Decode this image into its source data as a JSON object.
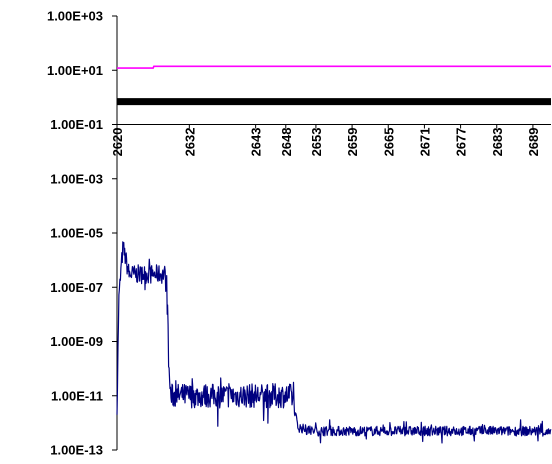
{
  "chart_data": {
    "type": "line",
    "title": "",
    "xlabel": "",
    "ylabel": "",
    "y_scale": "log",
    "ylim": [
      1e-13,
      1000
    ],
    "xlim": [
      2620,
      2692
    ],
    "grid": false,
    "legend": "none",
    "y_tick_values": [
      1000,
      10,
      0.1,
      0.001,
      1e-05,
      1e-07,
      1e-09,
      1e-11,
      1e-13
    ],
    "y_tick_labels": [
      "1.00E+03",
      "1.00E+01",
      "1.00E-01",
      "1.00E-03",
      "1.00E-05",
      "1.00E-07",
      "1.00E-09",
      "1.00E-11",
      "1.00E-13"
    ],
    "x_tick_values": [
      2620,
      2632,
      2643,
      2648,
      2653,
      2659,
      2665,
      2671,
      2677,
      2683,
      2689
    ],
    "x_tick_labels": [
      "2620",
      "2632",
      "2643",
      "2648",
      "2653",
      "2659",
      "2665",
      "2671",
      "2677",
      "2683",
      "2689"
    ],
    "x_axis_crosses_at": 0.1,
    "series": [
      {
        "color": "#ff00ff",
        "x": [
          2620,
          2626.0,
          2626.1,
          2692
        ],
        "y": [
          12,
          12,
          14,
          14
        ]
      },
      {
        "color": "#000000",
        "style": "thick",
        "x": [
          2620,
          2692
        ],
        "y": [
          0.7,
          0.7
        ]
      },
      {
        "color": "#000080",
        "style": "noisy",
        "x": [
          2620,
          2620.3,
          2620.6,
          2621,
          2622,
          2624,
          2626,
          2627.5,
          2628.0,
          2628.4,
          2628.6,
          2628.9,
          2629.5,
          2630,
          2632,
          2634,
          2636,
          2637,
          2638,
          2640,
          2642,
          2644,
          2646,
          2648,
          2649,
          2650,
          2652,
          2654,
          2656,
          2658,
          2660,
          2662,
          2664,
          2666,
          2668,
          2670,
          2672,
          2674,
          2676,
          2678,
          2680,
          2682,
          2684,
          2686,
          2688,
          2690,
          2692
        ],
        "y": [
          3e-12,
          3e-08,
          3e-07,
          3e-06,
          3e-07,
          3e-07,
          3e-07,
          3e-07,
          3e-07,
          1e-08,
          1e-10,
          1e-11,
          1e-11,
          1e-11,
          1e-11,
          1e-11,
          1e-11,
          1e-11,
          1e-11,
          1e-11,
          1e-11,
          1e-11,
          1e-11,
          1e-11,
          1e-11,
          7e-13,
          5e-13,
          5e-13,
          5e-13,
          5e-13,
          5e-13,
          5e-13,
          5e-13,
          5e-13,
          5e-13,
          5e-13,
          5e-13,
          5e-13,
          5e-13,
          5e-13,
          5e-13,
          5e-13,
          5e-13,
          5e-13,
          5e-13,
          5e-13,
          4e-13
        ]
      }
    ]
  }
}
